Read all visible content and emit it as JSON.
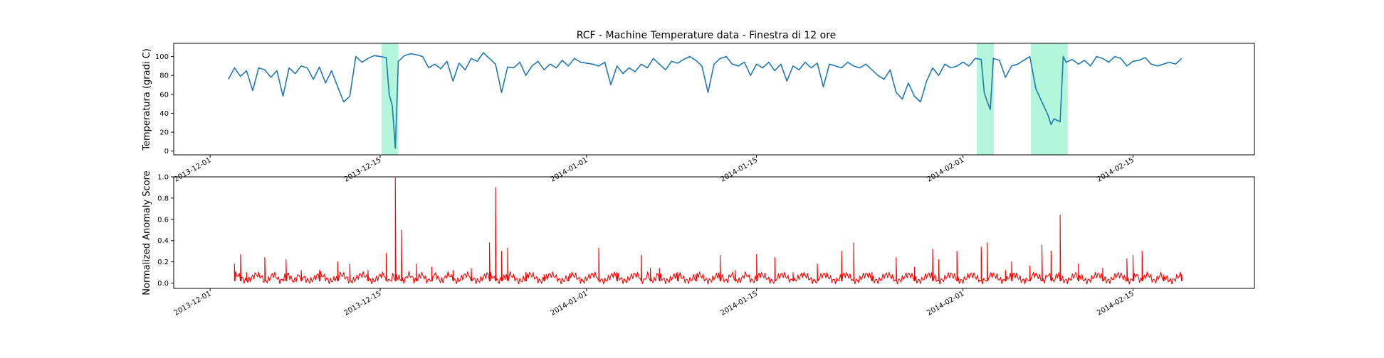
{
  "chart_data": [
    {
      "type": "line",
      "title": "RCF -  Machine Temperature data - Finestra di 12 ore",
      "ylabel": "Temperatura (gradi C)",
      "xlabel": "",
      "xlim": [
        "2013-11-28",
        "2014-02-25"
      ],
      "ylim": [
        -4,
        114
      ],
      "yticks": [
        0,
        20,
        40,
        60,
        80,
        100
      ],
      "xticks": [
        "2013-12-01",
        "2013-12-15",
        "2014-01-01",
        "2014-01-15",
        "2014-02-01",
        "2014-02-15"
      ],
      "grid": false,
      "colors": {
        "line": "#1f77b4",
        "anomaly_band": "#b3f5da"
      },
      "anomaly_windows": [
        [
          "2013-12-15T03:00",
          "2013-12-16T12:00"
        ],
        [
          "2014-02-02T03:00",
          "2014-02-03T13:00"
        ],
        [
          "2014-02-06T14:00",
          "2014-02-09T15:00"
        ]
      ],
      "series": [
        {
          "values": [
            [
              "2013-12-02T12:00",
              76
            ],
            [
              "2013-12-03T00:00",
              88
            ],
            [
              "2013-12-03T12:00",
              79
            ],
            [
              "2013-12-04T00:00",
              85
            ],
            [
              "2013-12-04T12:00",
              64
            ],
            [
              "2013-12-05T00:00",
              88
            ],
            [
              "2013-12-05T12:00",
              86
            ],
            [
              "2013-12-06T00:00",
              78
            ],
            [
              "2013-12-06T12:00",
              85
            ],
            [
              "2013-12-07T00:00",
              58
            ],
            [
              "2013-12-07T12:00",
              88
            ],
            [
              "2013-12-08T00:00",
              82
            ],
            [
              "2013-12-08T12:00",
              90
            ],
            [
              "2013-12-09T00:00",
              88
            ],
            [
              "2013-12-09T12:00",
              76
            ],
            [
              "2013-12-10T00:00",
              89
            ],
            [
              "2013-12-10T12:00",
              72
            ],
            [
              "2013-12-11T00:00",
              85
            ],
            [
              "2013-12-11T12:00",
              68
            ],
            [
              "2013-12-12T00:00",
              52
            ],
            [
              "2013-12-12T12:00",
              58
            ],
            [
              "2013-12-13T00:00",
              100
            ],
            [
              "2013-12-13T12:00",
              94
            ],
            [
              "2013-12-14T00:00",
              98
            ],
            [
              "2013-12-14T12:00",
              101
            ],
            [
              "2013-12-15T00:00",
              100
            ],
            [
              "2013-12-15T12:00",
              99
            ],
            [
              "2013-12-15T18:00",
              60
            ],
            [
              "2013-12-16T00:00",
              48
            ],
            [
              "2013-12-16T06:00",
              3
            ],
            [
              "2013-12-16T12:00",
              95
            ],
            [
              "2013-12-17T00:00",
              101
            ],
            [
              "2013-12-17T12:00",
              103
            ],
            [
              "2013-12-18T00:00",
              102
            ],
            [
              "2013-12-18T12:00",
              100
            ],
            [
              "2013-12-19T00:00",
              88
            ],
            [
              "2013-12-19T12:00",
              92
            ],
            [
              "2013-12-20T00:00",
              87
            ],
            [
              "2013-12-20T12:00",
              95
            ],
            [
              "2013-12-21T00:00",
              74
            ],
            [
              "2013-12-21T12:00",
              93
            ],
            [
              "2013-12-22T00:00",
              86
            ],
            [
              "2013-12-22T12:00",
              98
            ],
            [
              "2013-12-23T00:00",
              95
            ],
            [
              "2013-12-23T12:00",
              104
            ],
            [
              "2013-12-24T00:00",
              98
            ],
            [
              "2013-12-24T12:00",
              92
            ],
            [
              "2013-12-25T00:00",
              62
            ],
            [
              "2013-12-25T12:00",
              89
            ],
            [
              "2013-12-26T00:00",
              88
            ],
            [
              "2013-12-26T12:00",
              94
            ],
            [
              "2013-12-27T00:00",
              80
            ],
            [
              "2013-12-27T12:00",
              90
            ],
            [
              "2013-12-28T00:00",
              95
            ],
            [
              "2013-12-28T12:00",
              86
            ],
            [
              "2013-12-29T00:00",
              92
            ],
            [
              "2013-12-29T12:00",
              88
            ],
            [
              "2013-12-30T00:00",
              96
            ],
            [
              "2013-12-30T12:00",
              90
            ],
            [
              "2013-12-31T00:00",
              98
            ],
            [
              "2013-12-31T12:00",
              94
            ],
            [
              "2014-01-01T00:00",
              93
            ],
            [
              "2014-01-01T12:00",
              92
            ],
            [
              "2014-01-02T00:00",
              90
            ],
            [
              "2014-01-02T12:00",
              94
            ],
            [
              "2014-01-03T00:00",
              70
            ],
            [
              "2014-01-03T12:00",
              90
            ],
            [
              "2014-01-04T00:00",
              82
            ],
            [
              "2014-01-04T12:00",
              88
            ],
            [
              "2014-01-05T00:00",
              84
            ],
            [
              "2014-01-05T12:00",
              92
            ],
            [
              "2014-01-06T00:00",
              88
            ],
            [
              "2014-01-06T12:00",
              98
            ],
            [
              "2014-01-07T00:00",
              92
            ],
            [
              "2014-01-07T12:00",
              86
            ],
            [
              "2014-01-08T00:00",
              95
            ],
            [
              "2014-01-08T12:00",
              93
            ],
            [
              "2014-01-09T00:00",
              97
            ],
            [
              "2014-01-09T12:00",
              100
            ],
            [
              "2014-01-10T00:00",
              96
            ],
            [
              "2014-01-10T12:00",
              90
            ],
            [
              "2014-01-11T00:00",
              62
            ],
            [
              "2014-01-11T12:00",
              92
            ],
            [
              "2014-01-12T00:00",
              98
            ],
            [
              "2014-01-12T12:00",
              100
            ],
            [
              "2014-01-13T00:00",
              92
            ],
            [
              "2014-01-13T12:00",
              90
            ],
            [
              "2014-01-14T00:00",
              94
            ],
            [
              "2014-01-14T12:00",
              80
            ],
            [
              "2014-01-15T00:00",
              92
            ],
            [
              "2014-01-15T12:00",
              88
            ],
            [
              "2014-01-16T00:00",
              94
            ],
            [
              "2014-01-16T12:00",
              85
            ],
            [
              "2014-01-17T00:00",
              92
            ],
            [
              "2014-01-17T12:00",
              74
            ],
            [
              "2014-01-18T00:00",
              90
            ],
            [
              "2014-01-18T12:00",
              86
            ],
            [
              "2014-01-19T00:00",
              94
            ],
            [
              "2014-01-19T12:00",
              88
            ],
            [
              "2014-01-20T00:00",
              93
            ],
            [
              "2014-01-20T12:00",
              68
            ],
            [
              "2014-01-21T00:00",
              92
            ],
            [
              "2014-01-21T12:00",
              90
            ],
            [
              "2014-01-22T00:00",
              88
            ],
            [
              "2014-01-22T12:00",
              94
            ],
            [
              "2014-01-23T00:00",
              90
            ],
            [
              "2014-01-23T12:00",
              88
            ],
            [
              "2014-01-24T00:00",
              92
            ],
            [
              "2014-01-24T12:00",
              86
            ],
            [
              "2014-01-25T00:00",
              80
            ],
            [
              "2014-01-25T12:00",
              76
            ],
            [
              "2014-01-26T00:00",
              86
            ],
            [
              "2014-01-26T12:00",
              62
            ],
            [
              "2014-01-27T00:00",
              55
            ],
            [
              "2014-01-27T12:00",
              72
            ],
            [
              "2014-01-28T00:00",
              58
            ],
            [
              "2014-01-28T12:00",
              52
            ],
            [
              "2014-01-29T00:00",
              74
            ],
            [
              "2014-01-29T12:00",
              88
            ],
            [
              "2014-01-30T00:00",
              80
            ],
            [
              "2014-01-30T12:00",
              92
            ],
            [
              "2014-01-31T00:00",
              88
            ],
            [
              "2014-01-31T12:00",
              90
            ],
            [
              "2014-02-01T00:00",
              94
            ],
            [
              "2014-02-01T12:00",
              90
            ],
            [
              "2014-02-02T00:00",
              98
            ],
            [
              "2014-02-02T12:00",
              97
            ],
            [
              "2014-02-02T18:00",
              62
            ],
            [
              "2014-02-03T00:00",
              52
            ],
            [
              "2014-02-03T06:00",
              44
            ],
            [
              "2014-02-03T12:00",
              98
            ],
            [
              "2014-02-04T00:00",
              96
            ],
            [
              "2014-02-04T12:00",
              78
            ],
            [
              "2014-02-05T00:00",
              90
            ],
            [
              "2014-02-05T12:00",
              92
            ],
            [
              "2014-02-06T00:00",
              96
            ],
            [
              "2014-02-06T12:00",
              100
            ],
            [
              "2014-02-07T00:00",
              66
            ],
            [
              "2014-02-07T12:00",
              52
            ],
            [
              "2014-02-08T00:00",
              38
            ],
            [
              "2014-02-08T06:00",
              28
            ],
            [
              "2014-02-08T12:00",
              34
            ],
            [
              "2014-02-09T00:00",
              31
            ],
            [
              "2014-02-09T06:00",
              100
            ],
            [
              "2014-02-09T12:00",
              94
            ],
            [
              "2014-02-10T00:00",
              97
            ],
            [
              "2014-02-10T12:00",
              92
            ],
            [
              "2014-02-11T00:00",
              96
            ],
            [
              "2014-02-11T12:00",
              90
            ],
            [
              "2014-02-12T00:00",
              100
            ],
            [
              "2014-02-12T12:00",
              98
            ],
            [
              "2014-02-13T00:00",
              94
            ],
            [
              "2014-02-13T12:00",
              100
            ],
            [
              "2014-02-14T00:00",
              98
            ],
            [
              "2014-02-14T12:00",
              90
            ],
            [
              "2014-02-15T00:00",
              95
            ],
            [
              "2014-02-15T12:00",
              96
            ],
            [
              "2014-02-16T00:00",
              99
            ],
            [
              "2014-02-16T12:00",
              92
            ],
            [
              "2014-02-17T00:00",
              90
            ],
            [
              "2014-02-17T12:00",
              92
            ],
            [
              "2014-02-18T00:00",
              94
            ],
            [
              "2014-02-18T12:00",
              92
            ],
            [
              "2014-02-19T00:00",
              98
            ]
          ]
        }
      ]
    },
    {
      "type": "line",
      "title": "",
      "ylabel": "Normalized Anomaly Score",
      "xlabel": "",
      "xlim": [
        "2013-11-28",
        "2014-02-25"
      ],
      "ylim": [
        -0.05,
        1.0
      ],
      "yticks": [
        0.0,
        0.2,
        0.4,
        0.6,
        0.8,
        1.0
      ],
      "ytick_labels": [
        "0.0",
        "0.2",
        "0.4",
        "0.6",
        "0.8",
        "1.0"
      ],
      "xticks": [
        "2013-12-01",
        "2013-12-15",
        "2014-01-01",
        "2014-01-15",
        "2014-02-01",
        "2014-02-15"
      ],
      "grid": false,
      "colors": {
        "line": "#ff0000"
      },
      "series": [
        {
          "baseline": 0.02,
          "values": [
            [
              "2013-12-03T00:00",
              0.18
            ],
            [
              "2013-12-03T12:00",
              0.27
            ],
            [
              "2013-12-04T00:00",
              0.1
            ],
            [
              "2013-12-05T12:00",
              0.24
            ],
            [
              "2013-12-07T06:00",
              0.22
            ],
            [
              "2013-12-08T12:00",
              0.12
            ],
            [
              "2013-12-10T00:00",
              0.12
            ],
            [
              "2013-12-11T12:00",
              0.2
            ],
            [
              "2013-12-12T12:00",
              0.18
            ],
            [
              "2013-12-14T00:00",
              0.12
            ],
            [
              "2013-12-15T12:00",
              0.28
            ],
            [
              "2013-12-16T06:00",
              0.99
            ],
            [
              "2013-12-16T18:00",
              0.5
            ],
            [
              "2013-12-18T00:00",
              0.18
            ],
            [
              "2013-12-19T06:00",
              0.15
            ],
            [
              "2013-12-21T00:00",
              0.12
            ],
            [
              "2013-12-22T12:00",
              0.14
            ],
            [
              "2013-12-24T00:00",
              0.38
            ],
            [
              "2013-12-24T12:00",
              0.9
            ],
            [
              "2013-12-25T00:00",
              0.3
            ],
            [
              "2013-12-25T12:00",
              0.33
            ],
            [
              "2013-12-27T00:00",
              0.1
            ],
            [
              "2013-12-28T12:00",
              0.08
            ],
            [
              "2013-12-30T12:00",
              0.06
            ],
            [
              "2014-01-02T00:00",
              0.33
            ],
            [
              "2014-01-03T12:00",
              0.1
            ],
            [
              "2014-01-05T12:00",
              0.26
            ],
            [
              "2014-01-06T06:00",
              0.14
            ],
            [
              "2014-01-07T00:00",
              0.14
            ],
            [
              "2014-01-08T12:00",
              0.1
            ],
            [
              "2014-01-10T00:00",
              0.08
            ],
            [
              "2014-01-12T00:00",
              0.26
            ],
            [
              "2014-01-13T06:00",
              0.12
            ],
            [
              "2014-01-15T00:00",
              0.27
            ],
            [
              "2014-01-16T12:00",
              0.24
            ],
            [
              "2014-01-18T00:00",
              0.1
            ],
            [
              "2014-01-20T00:00",
              0.18
            ],
            [
              "2014-01-22T00:00",
              0.3
            ],
            [
              "2014-01-23T00:00",
              0.38
            ],
            [
              "2014-01-24T12:00",
              0.1
            ],
            [
              "2014-01-26T12:00",
              0.24
            ],
            [
              "2014-01-28T00:00",
              0.15
            ],
            [
              "2014-01-29T12:00",
              0.32
            ],
            [
              "2014-01-30T00:00",
              0.22
            ],
            [
              "2014-01-31T12:00",
              0.3
            ],
            [
              "2014-02-02T12:00",
              0.34
            ],
            [
              "2014-02-03T00:00",
              0.38
            ],
            [
              "2014-02-04T12:00",
              0.12
            ],
            [
              "2014-02-05T00:00",
              0.2
            ],
            [
              "2014-02-06T12:00",
              0.16
            ],
            [
              "2014-02-07T12:00",
              0.36
            ],
            [
              "2014-02-08T06:00",
              0.3
            ],
            [
              "2014-02-09T00:00",
              0.64
            ],
            [
              "2014-02-10T12:00",
              0.18
            ],
            [
              "2014-02-12T12:00",
              0.14
            ],
            [
              "2014-02-14T12:00",
              0.23
            ],
            [
              "2014-02-15T00:00",
              0.26
            ],
            [
              "2014-02-15T18:00",
              0.3
            ],
            [
              "2014-02-17T12:00",
              0.08
            ],
            [
              "2014-02-19T00:00",
              0.08
            ]
          ]
        }
      ]
    }
  ]
}
